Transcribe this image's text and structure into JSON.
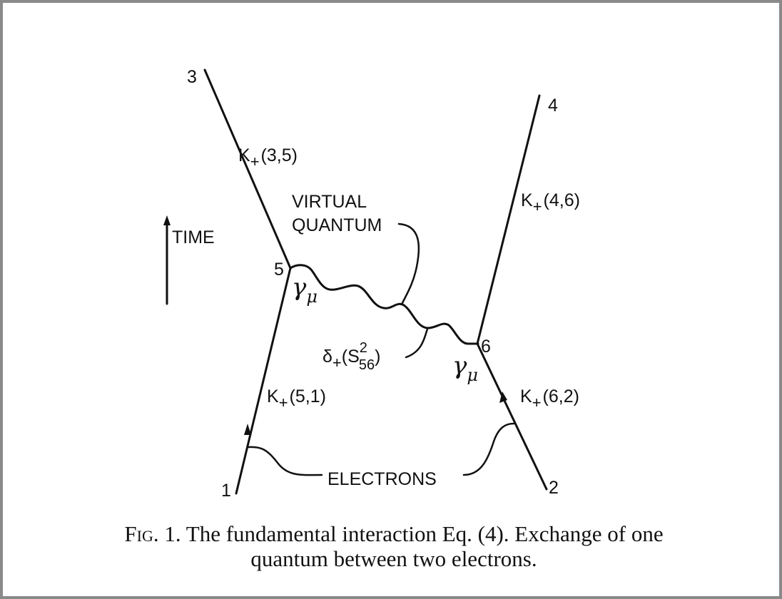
{
  "diagram": {
    "points": {
      "p1": "1",
      "p2": "2",
      "p3": "3",
      "p4": "4",
      "p5": "5",
      "p6": "6"
    },
    "propagators": {
      "k35": {
        "base": "K",
        "sub": "+",
        "args": "(3,5)"
      },
      "k46": {
        "base": "K",
        "sub": "+",
        "args": "(4,6)"
      },
      "k51": {
        "base": "K",
        "sub": "+",
        "args": "(5,1)"
      },
      "k62": {
        "base": "K",
        "sub": "+",
        "args": "(6,2)"
      }
    },
    "virtual_quantum": {
      "line1": "VIRTUAL",
      "line2": "QUANTUM"
    },
    "time_label": "TIME",
    "vertex_factor": {
      "base": "γ",
      "sub": "μ"
    },
    "photon_propagator": {
      "base": "δ",
      "sub": "+",
      "open": "(S",
      "sup": "2",
      "sub2": "56",
      "close": ")"
    },
    "electrons_label": "ELECTRONS"
  },
  "caption": {
    "fig": "Fig. 1.",
    "line1_rest": " The fundamental interaction Eq. (4). Exchange of one",
    "line2": "quantum between two electrons."
  }
}
